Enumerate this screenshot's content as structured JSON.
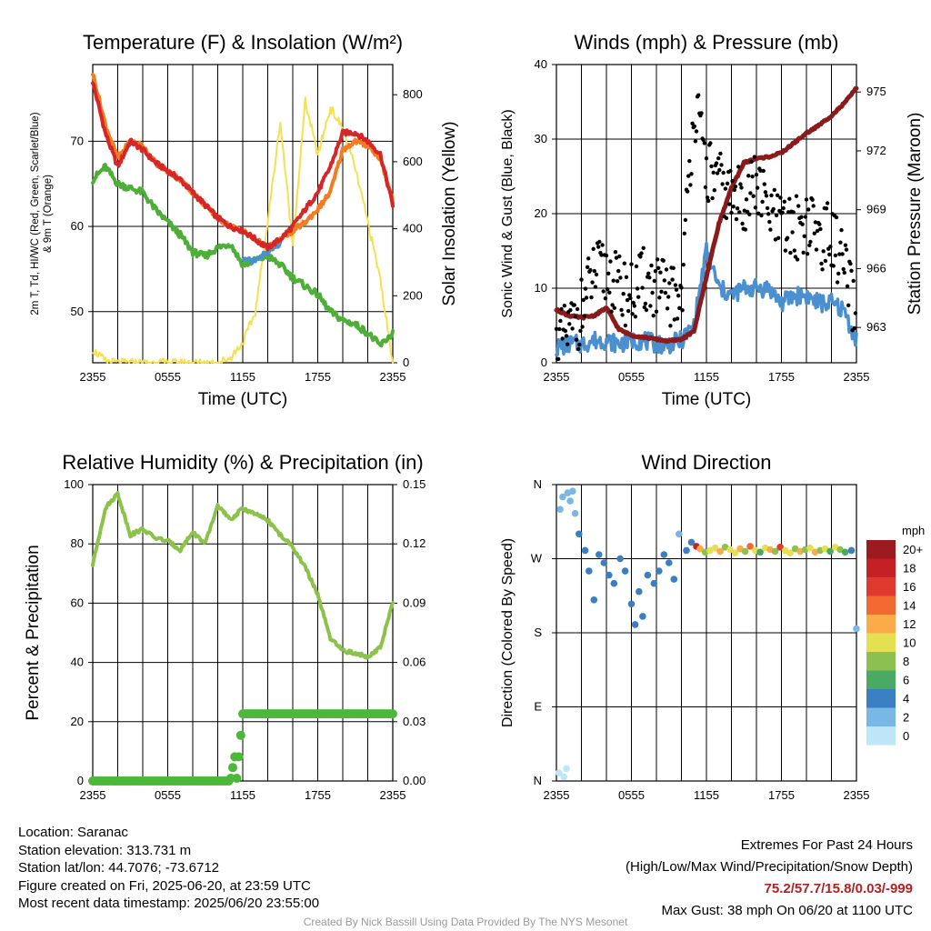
{
  "chart_data": [
    {
      "type": "line",
      "title": "Temperature (F) & Insolation (W/m²)",
      "xlabel": "Time (UTC)",
      "ylabel": "2m T, Td, HI/WC (Red, Green, Scarlet/Blue) & 9m T (Orange)",
      "ylabel_right": "Solar Insolation (Yellow)",
      "x_ticks": [
        "2355",
        "0555",
        "1155",
        "1755",
        "2355"
      ],
      "ylim": [
        44,
        79
      ],
      "y_ticks": [
        50,
        60,
        70
      ],
      "ylim_right": [
        0,
        890
      ],
      "y_ticks_right": [
        0,
        200,
        400,
        600,
        800
      ],
      "grid": true,
      "hours_since_start": [
        0,
        1,
        2,
        3,
        4,
        5,
        6,
        7,
        8,
        9,
        10,
        11,
        12,
        13,
        14,
        15,
        16,
        17,
        18,
        19,
        20,
        21,
        22,
        23,
        24
      ],
      "series": [
        {
          "name": "2m T",
          "color": "#d62728",
          "values": [
            77,
            71,
            67,
            70,
            69,
            67.5,
            66.5,
            65.5,
            64,
            62.5,
            61,
            60,
            59.5,
            58.5,
            57.5,
            58.5,
            60,
            62,
            64,
            67,
            71,
            71,
            70,
            68.5,
            62.5
          ]
        },
        {
          "name": "Td",
          "color": "#4daf38",
          "values": [
            65.5,
            67,
            65,
            64.5,
            64,
            62,
            60.5,
            59,
            57,
            56.5,
            57.5,
            58,
            55.5,
            56,
            56.5,
            55.5,
            54,
            53,
            52,
            50,
            49,
            48.5,
            47.5,
            46,
            47.5
          ]
        },
        {
          "name": "HI/WC",
          "color": "#4a90d0",
          "values": [
            null,
            null,
            null,
            null,
            null,
            null,
            null,
            null,
            null,
            null,
            null,
            null,
            56,
            56,
            57,
            58,
            null,
            null,
            null,
            null,
            null,
            null,
            null,
            null,
            null
          ]
        },
        {
          "name": "9m T",
          "color": "#f47c20",
          "values": [
            78,
            72,
            68,
            70,
            69.5,
            67.5,
            66.5,
            65.5,
            64,
            62.5,
            61,
            60,
            59.5,
            58.5,
            57.5,
            58.5,
            59.5,
            60.5,
            62,
            64,
            69,
            70,
            69.5,
            68,
            63
          ]
        },
        {
          "name": "Solar Insolation",
          "color": "#f5e050",
          "values": [
            40,
            5,
            0,
            0,
            0,
            0,
            0,
            0,
            0,
            0,
            0,
            15,
            60,
            150,
            420,
            720,
            350,
            780,
            620,
            760,
            700,
            580,
            420,
            250,
            0
          ]
        }
      ]
    },
    {
      "type": "scatter",
      "title": "Winds (mph) & Pressure (mb)",
      "xlabel": "Time (UTC)",
      "ylabel": "Sonic Wind & Gust (Blue, Black)",
      "ylabel_right": "Station Pressure (Maroon)",
      "x_ticks": [
        "2355",
        "0555",
        "1155",
        "1755",
        "2355"
      ],
      "ylim": [
        0,
        40
      ],
      "y_ticks": [
        0,
        10,
        20,
        30,
        40
      ],
      "ylim_right": [
        961.2,
        976.4
      ],
      "y_ticks_right": [
        963,
        966,
        969,
        972,
        975
      ],
      "grid": true,
      "hours_since_start": [
        0,
        1,
        2,
        3,
        4,
        5,
        6,
        7,
        8,
        9,
        10,
        11,
        12,
        13,
        14,
        15,
        16,
        17,
        18,
        19,
        20,
        21,
        22,
        23,
        24
      ],
      "series": [
        {
          "name": "Sonic Wind",
          "color": "#4a90d0",
          "values": [
            2,
            2.5,
            2.5,
            3,
            3,
            2.5,
            3,
            3,
            2.5,
            2.5,
            3,
            5,
            15,
            10,
            9,
            10,
            10,
            10,
            8,
            9,
            9,
            8,
            8,
            7,
            3
          ]
        },
        {
          "name": "Gust",
          "color": "#000000",
          "values": [
            2,
            4,
            7,
            12,
            12,
            10,
            9,
            11,
            10,
            9,
            9,
            35,
            26,
            24,
            22,
            22,
            24,
            20,
            18,
            18,
            19,
            17,
            17,
            13,
            5
          ]
        },
        {
          "name": "Station Pressure",
          "color": "#8b1a1a",
          "values": [
            963.9,
            963.6,
            963.5,
            963.6,
            964,
            962.9,
            962.6,
            962.5,
            962.4,
            962.3,
            962.4,
            962.8,
            965.6,
            968.3,
            970.1,
            971.4,
            971.6,
            971.7,
            971.9,
            972.4,
            972.9,
            973.3,
            973.8,
            974.4,
            975.2
          ]
        }
      ]
    },
    {
      "type": "line",
      "title": "Relative Humidity (%) & Precipitation (in)",
      "xlabel": "",
      "ylabel": "Percent & Precipitation",
      "x_ticks": [
        "2355",
        "0555",
        "1155",
        "1755",
        "2355"
      ],
      "ylim": [
        0,
        100
      ],
      "y_ticks": [
        0,
        20,
        40,
        60,
        80,
        100
      ],
      "ylim_right": [
        0,
        0.15
      ],
      "y_ticks_right": [
        "0.00",
        "0.03",
        "0.06",
        "0.09",
        "0.12",
        "0.15"
      ],
      "grid": true,
      "hours_since_start": [
        0,
        1,
        2,
        3,
        4,
        5,
        6,
        7,
        8,
        9,
        10,
        11,
        12,
        13,
        14,
        15,
        16,
        17,
        18,
        19,
        20,
        21,
        22,
        23,
        24
      ],
      "series": [
        {
          "name": "Relative Humidity",
          "color": "#8bc34a",
          "values": [
            73,
            92,
            97,
            83,
            85,
            82,
            81,
            78,
            84,
            80,
            93,
            88,
            92,
            90,
            88,
            83,
            79,
            72,
            63,
            48,
            44,
            43,
            42,
            45,
            60
          ]
        },
        {
          "name": "Precipitation",
          "color": "#4cb83a",
          "values": [
            0,
            0,
            0,
            0,
            0,
            0,
            0,
            0,
            0,
            0,
            0,
            0,
            0.034,
            0.034,
            0.034,
            0.034,
            0.034,
            0.034,
            0.034,
            0.034,
            0.034,
            0.034,
            0.034,
            0.034,
            0.034
          ]
        }
      ]
    },
    {
      "type": "scatter",
      "title": "Wind Direction",
      "xlabel": "",
      "ylabel": "Direction (Colored By Speed)",
      "x_ticks": [
        "2355",
        "0555",
        "1155",
        "1755",
        "2355"
      ],
      "y_ticks": [
        "N",
        "E",
        "S",
        "W",
        "N"
      ],
      "ylim": [
        0,
        360
      ],
      "grid": true,
      "colorbar_unit": "mph",
      "colorbar_labels": [
        "20+",
        "18",
        "16",
        "14",
        "12",
        "10",
        "8",
        "6",
        "4",
        "2",
        "0"
      ],
      "colorbar_colors": [
        "#9b1b1e",
        "#c62027",
        "#e03a2e",
        "#f26a30",
        "#fbab4a",
        "#e5e052",
        "#8cc152",
        "#4aaa64",
        "#3a7fc2",
        "#79b7e6",
        "#bfe5f8"
      ],
      "points": [
        {
          "h": 0.2,
          "dir": 10,
          "mph": 0
        },
        {
          "h": 0.6,
          "dir": 5,
          "mph": 0
        },
        {
          "h": 0.8,
          "dir": 15,
          "mph": 0
        },
        {
          "h": 0.3,
          "dir": 330,
          "mph": 1
        },
        {
          "h": 0.5,
          "dir": 345,
          "mph": 1
        },
        {
          "h": 0.9,
          "dir": 350,
          "mph": 1
        },
        {
          "h": 1.1,
          "dir": 340,
          "mph": 2
        },
        {
          "h": 1.3,
          "dir": 352,
          "mph": 1
        },
        {
          "h": 1.5,
          "dir": 325,
          "mph": 2
        },
        {
          "h": 1.8,
          "dir": 300,
          "mph": 3
        },
        {
          "h": 2.3,
          "dir": 280,
          "mph": 3
        },
        {
          "h": 2.6,
          "dir": 255,
          "mph": 3
        },
        {
          "h": 3.0,
          "dir": 220,
          "mph": 3
        },
        {
          "h": 3.4,
          "dir": 275,
          "mph": 3
        },
        {
          "h": 3.8,
          "dir": 265,
          "mph": 4
        },
        {
          "h": 4.2,
          "dir": 250,
          "mph": 3
        },
        {
          "h": 4.6,
          "dir": 240,
          "mph": 3
        },
        {
          "h": 5.1,
          "dir": 270,
          "mph": 3
        },
        {
          "h": 5.5,
          "dir": 255,
          "mph": 3
        },
        {
          "h": 6.0,
          "dir": 215,
          "mph": 3
        },
        {
          "h": 6.3,
          "dir": 190,
          "mph": 3
        },
        {
          "h": 6.6,
          "dir": 230,
          "mph": 3
        },
        {
          "h": 6.9,
          "dir": 200,
          "mph": 3
        },
        {
          "h": 7.3,
          "dir": 250,
          "mph": 3
        },
        {
          "h": 7.8,
          "dir": 240,
          "mph": 4
        },
        {
          "h": 8.2,
          "dir": 255,
          "mph": 3
        },
        {
          "h": 8.6,
          "dir": 275,
          "mph": 3
        },
        {
          "h": 9.0,
          "dir": 265,
          "mph": 4
        },
        {
          "h": 9.4,
          "dir": 245,
          "mph": 3
        },
        {
          "h": 9.8,
          "dir": 300,
          "mph": 2
        },
        {
          "h": 10.4,
          "dir": 280,
          "mph": 3
        },
        {
          "h": 10.8,
          "dir": 290,
          "mph": 4
        },
        {
          "h": 11.2,
          "dir": 285,
          "mph": 18
        },
        {
          "h": 11.5,
          "dir": 282,
          "mph": 12
        },
        {
          "h": 11.9,
          "dir": 278,
          "mph": 8
        },
        {
          "h": 12.3,
          "dir": 280,
          "mph": 10
        },
        {
          "h": 12.7,
          "dir": 283,
          "mph": 9
        },
        {
          "h": 13.1,
          "dir": 279,
          "mph": 12
        },
        {
          "h": 13.5,
          "dir": 284,
          "mph": 7
        },
        {
          "h": 13.9,
          "dir": 281,
          "mph": 10
        },
        {
          "h": 14.3,
          "dir": 277,
          "mph": 9
        },
        {
          "h": 14.7,
          "dir": 282,
          "mph": 11
        },
        {
          "h": 15.1,
          "dir": 279,
          "mph": 8
        },
        {
          "h": 15.5,
          "dir": 285,
          "mph": 13
        },
        {
          "h": 15.9,
          "dir": 280,
          "mph": 9
        },
        {
          "h": 16.3,
          "dir": 278,
          "mph": 6
        },
        {
          "h": 16.7,
          "dir": 283,
          "mph": 10
        },
        {
          "h": 17.1,
          "dir": 281,
          "mph": 11
        },
        {
          "h": 17.5,
          "dir": 279,
          "mph": 8
        },
        {
          "h": 17.9,
          "dir": 284,
          "mph": 15
        },
        {
          "h": 18.3,
          "dir": 280,
          "mph": 9
        },
        {
          "h": 18.7,
          "dir": 277,
          "mph": 10
        },
        {
          "h": 19.1,
          "dir": 282,
          "mph": 8
        },
        {
          "h": 19.5,
          "dir": 279,
          "mph": 11
        },
        {
          "h": 19.9,
          "dir": 281,
          "mph": 7
        },
        {
          "h": 20.3,
          "dir": 283,
          "mph": 9
        },
        {
          "h": 20.7,
          "dir": 278,
          "mph": 12
        },
        {
          "h": 21.1,
          "dir": 280,
          "mph": 8
        },
        {
          "h": 21.5,
          "dir": 282,
          "mph": 10
        },
        {
          "h": 21.9,
          "dir": 279,
          "mph": 6
        },
        {
          "h": 22.3,
          "dir": 284,
          "mph": 9
        },
        {
          "h": 22.7,
          "dir": 281,
          "mph": 8
        },
        {
          "h": 23.1,
          "dir": 278,
          "mph": 6
        },
        {
          "h": 23.6,
          "dir": 280,
          "mph": 4
        },
        {
          "h": 24.0,
          "dir": 185,
          "mph": 2
        }
      ]
    }
  ],
  "footer": {
    "location": "Location: Saranac",
    "elevation": "Station elevation: 313.731 m",
    "latlon": "Station lat/lon: 44.7076; -73.6712",
    "created": "Figure created on Fri, 2025-06-20, at 23:59 UTC",
    "recent": "Most recent data timestamp: 2025/06/20 23:55:00",
    "extremes_title": "Extremes For Past 24 Hours",
    "extremes_legend": "(High/Low/Max Wind/Precipitation/Snow Depth)",
    "extremes_values": "75.2/57.7/15.8/0.03/-999",
    "max_gust": "Max Gust: 38 mph On 06/20 at 1100 UTC",
    "credit": "Created By Nick Bassill Using Data Provided By The NYS Mesonet"
  }
}
